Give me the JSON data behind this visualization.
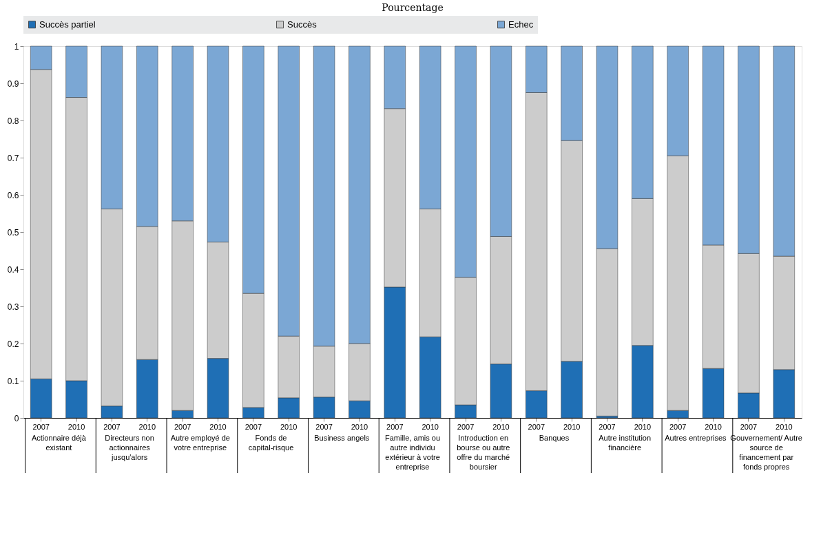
{
  "chart_data": {
    "type": "bar",
    "title": "Pourcentage",
    "stacked": true,
    "legend": "top",
    "grid": false,
    "categories": [
      "2007",
      "2010",
      "2007",
      "2010",
      "2007",
      "2010",
      "2007",
      "2010",
      "2007",
      "2010",
      "2007",
      "2010",
      "2007",
      "2010",
      "2007",
      "2010",
      "2007",
      "2010",
      "2007",
      "2010",
      "2007",
      "2010"
    ],
    "series": [
      {
        "name": "Succès partiel",
        "color": "#1f6fb5",
        "values": [
          0.105,
          0.1,
          0.032,
          0.157,
          0.02,
          0.16,
          0.028,
          0.054,
          0.056,
          0.046,
          0.352,
          0.218,
          0.035,
          0.145,
          0.073,
          0.152,
          0.005,
          0.195,
          0.02,
          0.133,
          0.067,
          0.13
        ]
      },
      {
        "name": "Succès",
        "color": "#cccccc",
        "values": [
          0.832,
          0.762,
          0.53,
          0.358,
          0.51,
          0.313,
          0.307,
          0.166,
          0.137,
          0.154,
          0.48,
          0.344,
          0.343,
          0.343,
          0.802,
          0.594,
          0.45,
          0.395,
          0.685,
          0.332,
          0.375,
          0.305
        ]
      },
      {
        "name": "Echec",
        "color": "#7ba7d4",
        "values": [
          0.063,
          0.138,
          0.438,
          0.485,
          0.47,
          0.527,
          0.665,
          0.78,
          0.807,
          0.8,
          0.168,
          0.438,
          0.622,
          0.512,
          0.125,
          0.254,
          0.545,
          0.41,
          0.295,
          0.535,
          0.558,
          0.565
        ]
      }
    ],
    "ylim": [
      0,
      1
    ],
    "yticks": [
      0,
      0.1,
      0.2,
      0.3,
      0.4,
      0.5,
      0.6,
      0.7,
      0.8,
      0.9,
      1
    ],
    "annotations": [
      "Actionnaire déjà existant",
      "Directeurs non actionnaires jusqu'alors",
      "Autre employé de votre entreprise",
      "Fonds de capital-risque",
      "Business angels",
      "Famille, amis ou autre individu extérieur à votre entreprise",
      "Introduction en bourse ou autre offre du marché boursier",
      "Banques",
      "Autre institution financière",
      "Autres entreprises",
      "Gouvernement/ Autre source de financement par fonds propres"
    ]
  }
}
